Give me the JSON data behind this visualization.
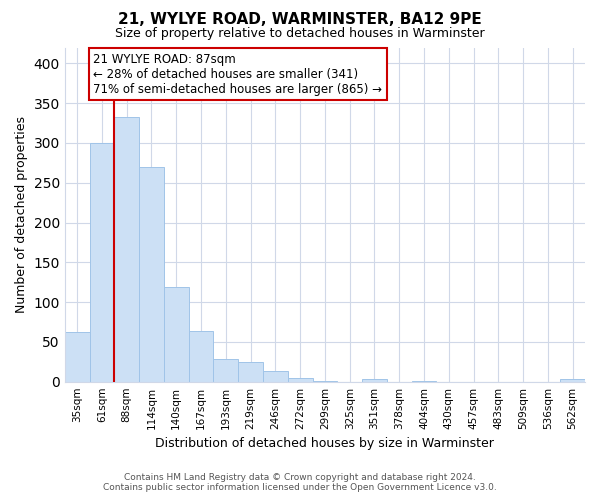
{
  "title": "21, WYLYE ROAD, WARMINSTER, BA12 9PE",
  "subtitle": "Size of property relative to detached houses in Warminster",
  "xlabel": "Distribution of detached houses by size in Warminster",
  "ylabel": "Number of detached properties",
  "bar_color": "#cce0f5",
  "bar_edge_color": "#a0c4e8",
  "highlight_bar_index": 2,
  "highlight_line_color": "#cc0000",
  "categories": [
    "35sqm",
    "61sqm",
    "88sqm",
    "114sqm",
    "140sqm",
    "167sqm",
    "193sqm",
    "219sqm",
    "246sqm",
    "272sqm",
    "299sqm",
    "325sqm",
    "351sqm",
    "378sqm",
    "404sqm",
    "430sqm",
    "457sqm",
    "483sqm",
    "509sqm",
    "536sqm",
    "562sqm"
  ],
  "values": [
    63,
    300,
    333,
    270,
    119,
    64,
    29,
    25,
    13,
    5,
    1,
    0,
    3,
    0,
    1,
    0,
    0,
    0,
    0,
    0,
    3
  ],
  "ylim": [
    0,
    420
  ],
  "yticks": [
    0,
    50,
    100,
    150,
    200,
    250,
    300,
    350,
    400
  ],
  "annotation_title": "21 WYLYE ROAD: 87sqm",
  "annotation_line1": "← 28% of detached houses are smaller (341)",
  "annotation_line2": "71% of semi-detached houses are larger (865) →",
  "footer_line1": "Contains HM Land Registry data © Crown copyright and database right 2024.",
  "footer_line2": "Contains public sector information licensed under the Open Government Licence v3.0.",
  "background_color": "#ffffff",
  "grid_color": "#d0d8e8"
}
